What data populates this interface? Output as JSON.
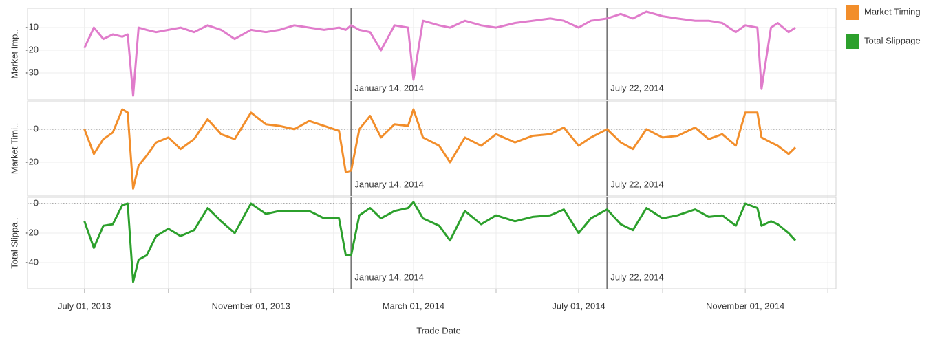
{
  "chart_data": {
    "type": "line",
    "xlabel": "Trade Date",
    "xlim": [
      "2013-05-20",
      "2015-01-07"
    ],
    "xticks": [
      {
        "value": "2013-07-01",
        "label": "July 01, 2013"
      },
      {
        "value": "2013-11-01",
        "label": "November 01, 2013"
      },
      {
        "value": "2014-03-01",
        "label": "March 01, 2014"
      },
      {
        "value": "2014-07-01",
        "label": "July 01, 2014"
      },
      {
        "value": "2014-11-01",
        "label": "November 01, 2014"
      }
    ],
    "x_minor_ticks": [
      "2013-09-01",
      "2014-01-01",
      "2014-05-01",
      "2014-09-01",
      "2015-01-01"
    ],
    "reference_lines": [
      {
        "x": "2014-01-14",
        "label": "January 14, 2014"
      },
      {
        "x": "2014-07-22",
        "label": "July 22, 2014"
      }
    ],
    "x": [
      "2013-07-01",
      "2013-07-08",
      "2013-07-15",
      "2013-07-22",
      "2013-07-29",
      "2013-08-02",
      "2013-08-06",
      "2013-08-10",
      "2013-08-16",
      "2013-08-23",
      "2013-09-01",
      "2013-09-10",
      "2013-09-20",
      "2013-09-30",
      "2013-10-10",
      "2013-10-20",
      "2013-11-01",
      "2013-11-12",
      "2013-11-22",
      "2013-12-03",
      "2013-12-14",
      "2013-12-25",
      "2014-01-05",
      "2014-01-10",
      "2014-01-14",
      "2014-01-20",
      "2014-01-28",
      "2014-02-05",
      "2014-02-15",
      "2014-02-25",
      "2014-03-01",
      "2014-03-08",
      "2014-03-20",
      "2014-03-28",
      "2014-04-08",
      "2014-04-20",
      "2014-05-01",
      "2014-05-15",
      "2014-05-28",
      "2014-06-10",
      "2014-06-20",
      "2014-07-01",
      "2014-07-10",
      "2014-07-22",
      "2014-08-01",
      "2014-08-10",
      "2014-08-20",
      "2014-09-01",
      "2014-09-12",
      "2014-09-25",
      "2014-10-05",
      "2014-10-15",
      "2014-10-25",
      "2014-11-01",
      "2014-11-10",
      "2014-11-13",
      "2014-11-20",
      "2014-11-25",
      "2014-12-03",
      "2014-12-08"
    ],
    "legend": "right",
    "panels": [
      {
        "ylabel": "Market Imp..",
        "ylim": [
          -41.8,
          -1.5
        ],
        "yticks": [
          -10,
          -20,
          -30
        ],
        "zero_line": false,
        "series": [
          {
            "color": "#e07ccb",
            "values": [
              -19,
              -10,
              -15,
              -13,
              -14,
              -13,
              -40,
              -10,
              -11,
              -12,
              -11,
              -10,
              -12,
              -9,
              -11,
              -15,
              -11,
              -12,
              -11,
              -9,
              -10,
              -11,
              -10,
              -11,
              -9,
              -11,
              -12,
              -20,
              -9,
              -10,
              -33,
              -7,
              -9,
              -10,
              -7,
              -9,
              -10,
              -8,
              -7,
              -6,
              -7,
              -10,
              -7,
              -6,
              -4,
              -6,
              -3,
              -5,
              -6,
              -7,
              -7,
              -8,
              -12,
              -9,
              -10,
              -37,
              -10,
              -8,
              -12,
              -10
            ]
          }
        ]
      },
      {
        "ylabel": "Market Timi..",
        "ylim": [
          -40.4,
          17
        ],
        "yticks": [
          0,
          -20
        ],
        "zero_line": true,
        "series": [
          {
            "name": "Market Timing",
            "color": "#f28e2b",
            "values": [
              0,
              -15,
              -6,
              -2,
              12,
              10,
              -36,
              -22,
              -16,
              -8,
              -5,
              -12,
              -6,
              6,
              -3,
              -6,
              10,
              3,
              2,
              0,
              5,
              2,
              -1,
              -26,
              -25,
              0,
              8,
              -5,
              3,
              2,
              12,
              -5,
              -10,
              -20,
              -5,
              -10,
              -3,
              -8,
              -4,
              -3,
              1,
              -10,
              -5,
              0,
              -8,
              -12,
              0,
              -5,
              -4,
              1,
              -6,
              -3,
              -10,
              10,
              10,
              -5,
              -8,
              -10,
              -15,
              -11
            ]
          }
        ]
      },
      {
        "ylabel": "Total Slippa..",
        "ylim": [
          -57.7,
          4.2
        ],
        "yticks": [
          0,
          -20,
          -40
        ],
        "zero_line": true,
        "series": [
          {
            "name": "Total Slippage",
            "color": "#2ca02c",
            "values": [
              -12,
              -30,
              -15,
              -14,
              -1,
              0,
              -53,
              -38,
              -35,
              -22,
              -17,
              -22,
              -18,
              -3,
              -12,
              -20,
              0,
              -7,
              -5,
              -5,
              -5,
              -10,
              -10,
              -35,
              -35,
              -8,
              -3,
              -10,
              -5,
              -3,
              1,
              -10,
              -15,
              -25,
              -5,
              -14,
              -8,
              -12,
              -9,
              -8,
              -4,
              -20,
              -10,
              -4,
              -14,
              -18,
              -3,
              -10,
              -8,
              -4,
              -9,
              -8,
              -15,
              0,
              -3,
              -15,
              -12,
              -14,
              -20,
              -25
            ]
          }
        ]
      }
    ]
  }
}
